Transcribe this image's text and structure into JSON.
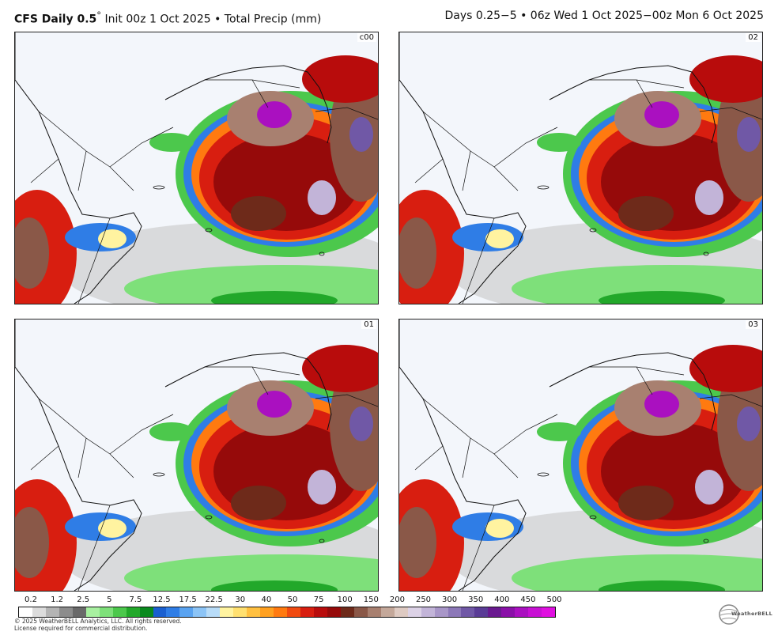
{
  "header": {
    "brand": "CFS Daily 0.5",
    "degree": "°",
    "init": " Init 00z 1 Oct 2025 • Total Precip (mm)",
    "valid": "Days 0.25−5 • 06z Wed 1 Oct 2025−00z Mon 6 Oct 2025"
  },
  "panels": [
    {
      "label": "c00",
      "seed": 1
    },
    {
      "label": "02",
      "seed": 2
    },
    {
      "label": "01",
      "seed": 3
    },
    {
      "label": "03",
      "seed": 4
    }
  ],
  "colorbar": {
    "ticks": [
      "0.2",
      "1.2",
      "2.5",
      "5",
      "7.5",
      "12.5",
      "17.5",
      "22.5",
      "30",
      "40",
      "50",
      "75",
      "100",
      "150",
      "200",
      "250",
      "300",
      "350",
      "400",
      "450",
      "500"
    ],
    "colors": [
      "#ffffff",
      "#dcdcdc",
      "#b4b4b4",
      "#8c8c8c",
      "#696969",
      "#a8f0a0",
      "#7ee07a",
      "#4cc84c",
      "#22a82a",
      "#0a8a1e",
      "#1a5fd0",
      "#2f7de6",
      "#5aa3f0",
      "#8cc4f6",
      "#b8dcf8",
      "#fff3a0",
      "#ffe070",
      "#ffc040",
      "#ffa020",
      "#ff7a10",
      "#f04a10",
      "#d81e10",
      "#b80c0c",
      "#960a0a",
      "#6e2a1a",
      "#8a5848",
      "#a88070",
      "#c4a89a",
      "#decac2",
      "#dcd2e6",
      "#c2b4d8",
      "#a896c8",
      "#8c78b8",
      "#7058a6",
      "#5a3c96",
      "#6a1a90",
      "#8a10a8",
      "#aa10c0",
      "#c810d4",
      "#e010e0"
    ],
    "unit": "mm"
  },
  "footer": {
    "copyright": "© 2025 WeatherBELL Analytics, LLC. All rights reserved.",
    "license": "License required for commercial distribution.",
    "logo_text": "WeatherBELL"
  }
}
